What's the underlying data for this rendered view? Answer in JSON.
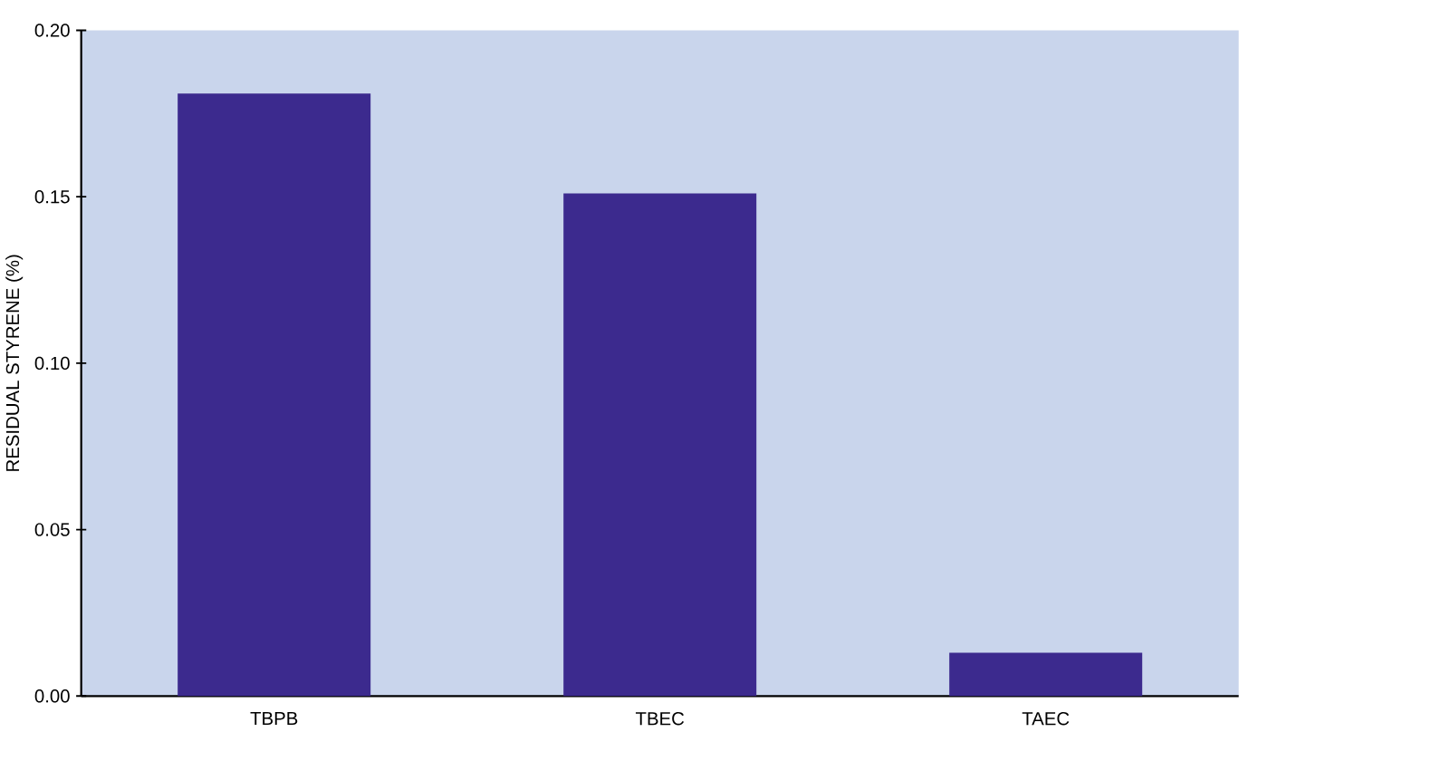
{
  "chart_data": {
    "type": "bar",
    "ylabel": "RESIDUAL STYRENE (%)",
    "categories": [
      "TBPB",
      "TBEC",
      "TAEC"
    ],
    "values": [
      0.181,
      0.151,
      0.013
    ],
    "color": "#3c2a8e",
    "ylim": [
      0,
      0.2
    ],
    "yticks": [
      {
        "value": 0,
        "label": "0.00"
      },
      {
        "value": 0.05,
        "label": "0.05"
      },
      {
        "value": 0.1,
        "label": "0.10"
      },
      {
        "value": 0.15,
        "label": "0.15"
      },
      {
        "value": 0.2,
        "label": "0.20"
      }
    ],
    "grid": false
  }
}
